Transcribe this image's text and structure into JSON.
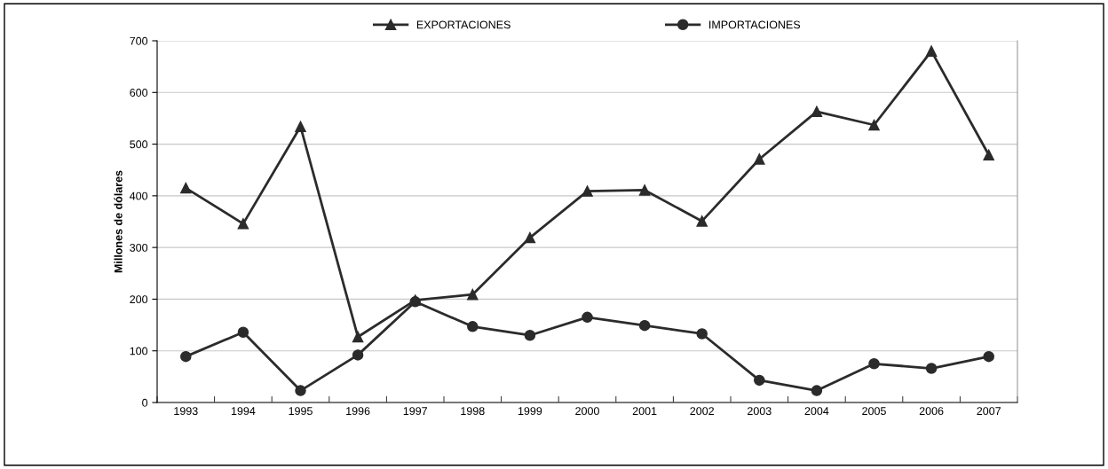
{
  "chart_data": {
    "type": "line",
    "ylabel": "Millones de dólares",
    "categories": [
      "1993",
      "1994",
      "1995",
      "1996",
      "1997",
      "1998",
      "1999",
      "2000",
      "2001",
      "2002",
      "2003",
      "2004",
      "2005",
      "2006",
      "2007"
    ],
    "series": [
      {
        "name": "EXPORTACIONES",
        "color": "#2b2b2b",
        "marker": "triangle",
        "values": [
          415,
          346,
          534,
          127,
          198,
          209,
          319,
          409,
          411,
          351,
          471,
          563,
          537,
          680,
          479
        ]
      },
      {
        "name": "IMPORTACIONES",
        "color": "#2b2b2b",
        "marker": "circle",
        "values": [
          89,
          136,
          23,
          92,
          195,
          147,
          130,
          165,
          149,
          133,
          43,
          23,
          75,
          66,
          89
        ]
      }
    ],
    "ylim": [
      0,
      700
    ],
    "yticks": [
      0,
      100,
      200,
      300,
      400,
      500,
      600,
      700
    ],
    "grid": "y",
    "legend": "top",
    "line_style": "solid"
  }
}
